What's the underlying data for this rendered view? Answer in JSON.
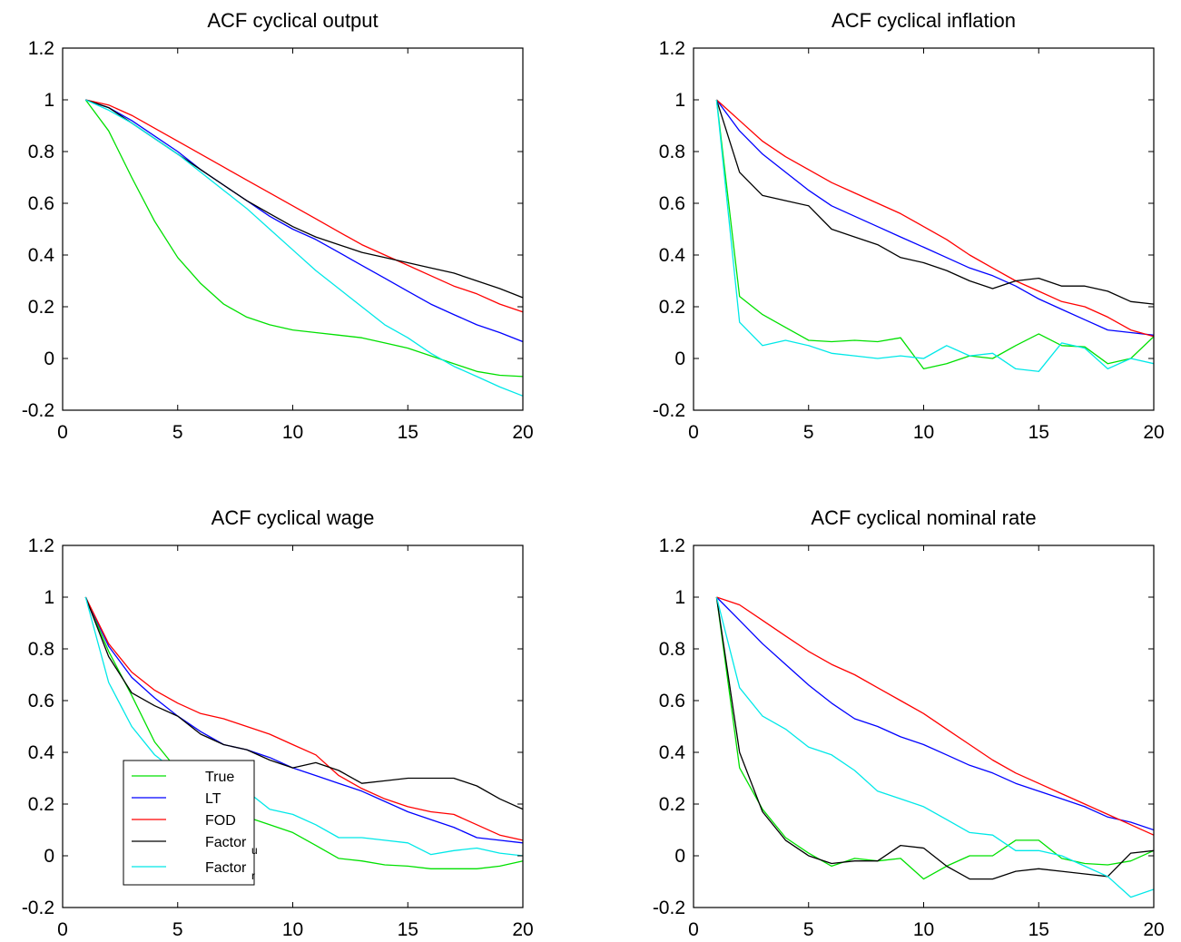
{
  "chart_data": [
    {
      "type": "line",
      "title": "ACF cyclical output",
      "xlim": [
        0,
        20
      ],
      "ylim": [
        -0.2,
        1.2
      ],
      "xticks": [
        "0",
        "5",
        "10",
        "15",
        "20"
      ],
      "yticks": [
        "-0.2",
        "0",
        "0.2",
        "0.4",
        "0.6",
        "0.8",
        "1",
        "1.2"
      ],
      "x": [
        1,
        2,
        3,
        4,
        5,
        6,
        7,
        8,
        9,
        10,
        11,
        12,
        13,
        14,
        15,
        16,
        17,
        18,
        19,
        20
      ],
      "grid": false,
      "series": [
        {
          "key": "True",
          "color": "#00e000",
          "values": [
            1,
            0.88,
            0.7,
            0.53,
            0.39,
            0.29,
            0.21,
            0.16,
            0.13,
            0.11,
            0.1,
            0.09,
            0.08,
            0.06,
            0.04,
            0.01,
            -0.02,
            -0.05,
            -0.065,
            -0.07
          ]
        },
        {
          "key": "LT",
          "color": "#0000ff",
          "values": [
            1,
            0.97,
            0.92,
            0.86,
            0.8,
            0.73,
            0.67,
            0.61,
            0.55,
            0.5,
            0.46,
            0.41,
            0.36,
            0.31,
            0.26,
            0.21,
            0.17,
            0.13,
            0.1,
            0.065
          ]
        },
        {
          "key": "FOD",
          "color": "#ff0000",
          "values": [
            1,
            0.98,
            0.94,
            0.89,
            0.84,
            0.79,
            0.74,
            0.69,
            0.64,
            0.59,
            0.54,
            0.49,
            0.44,
            0.4,
            0.36,
            0.32,
            0.28,
            0.25,
            0.21,
            0.18
          ]
        },
        {
          "key": "Factor_u",
          "color": "#000000",
          "values": [
            1,
            0.97,
            0.91,
            0.85,
            0.79,
            0.73,
            0.67,
            0.61,
            0.56,
            0.51,
            0.47,
            0.44,
            0.41,
            0.39,
            0.37,
            0.35,
            0.33,
            0.3,
            0.27,
            0.235
          ]
        },
        {
          "key": "Factor_r",
          "color": "#00e8e8",
          "values": [
            1,
            0.96,
            0.91,
            0.85,
            0.79,
            0.72,
            0.65,
            0.58,
            0.5,
            0.42,
            0.34,
            0.27,
            0.2,
            0.13,
            0.08,
            0.02,
            -0.03,
            -0.07,
            -0.11,
            -0.145
          ]
        }
      ]
    },
    {
      "type": "line",
      "title": "ACF cyclical inflation",
      "xlim": [
        0,
        20
      ],
      "ylim": [
        -0.2,
        1.2
      ],
      "xticks": [
        "0",
        "5",
        "10",
        "15",
        "20"
      ],
      "yticks": [
        "-0.2",
        "0",
        "0.2",
        "0.4",
        "0.6",
        "0.8",
        "1",
        "1.2"
      ],
      "x": [
        1,
        2,
        3,
        4,
        5,
        6,
        7,
        8,
        9,
        10,
        11,
        12,
        13,
        14,
        15,
        16,
        17,
        18,
        19,
        20
      ],
      "grid": false,
      "series": [
        {
          "key": "True",
          "color": "#00e000",
          "values": [
            1,
            0.24,
            0.17,
            0.12,
            0.07,
            0.065,
            0.07,
            0.065,
            0.08,
            -0.04,
            -0.02,
            0.01,
            0.0,
            0.05,
            0.095,
            0.05,
            0.045,
            -0.02,
            0.0,
            0.085
          ]
        },
        {
          "key": "LT",
          "color": "#0000ff",
          "values": [
            1,
            0.88,
            0.79,
            0.72,
            0.65,
            0.59,
            0.55,
            0.51,
            0.47,
            0.43,
            0.39,
            0.35,
            0.32,
            0.28,
            0.23,
            0.19,
            0.15,
            0.11,
            0.1,
            0.09
          ]
        },
        {
          "key": "FOD",
          "color": "#ff0000",
          "values": [
            1,
            0.92,
            0.84,
            0.78,
            0.73,
            0.68,
            0.64,
            0.6,
            0.56,
            0.51,
            0.46,
            0.4,
            0.35,
            0.3,
            0.26,
            0.22,
            0.2,
            0.16,
            0.11,
            0.085
          ]
        },
        {
          "key": "Factor_u",
          "color": "#000000",
          "values": [
            1,
            0.72,
            0.63,
            0.61,
            0.59,
            0.5,
            0.47,
            0.44,
            0.39,
            0.37,
            0.34,
            0.3,
            0.27,
            0.3,
            0.31,
            0.28,
            0.28,
            0.26,
            0.22,
            0.21
          ]
        },
        {
          "key": "Factor_r",
          "color": "#00e8e8",
          "values": [
            1,
            0.14,
            0.05,
            0.07,
            0.05,
            0.02,
            0.01,
            0.0,
            0.01,
            0.0,
            0.05,
            0.01,
            0.02,
            -0.04,
            -0.05,
            0.06,
            0.04,
            -0.04,
            0.0,
            -0.02
          ]
        }
      ]
    },
    {
      "type": "line",
      "title": "ACF cyclical wage",
      "xlim": [
        0,
        20
      ],
      "ylim": [
        -0.2,
        1.2
      ],
      "xticks": [
        "0",
        "5",
        "10",
        "15",
        "20"
      ],
      "yticks": [
        "-0.2",
        "0",
        "0.2",
        "0.4",
        "0.6",
        "0.8",
        "1",
        "1.2"
      ],
      "x": [
        1,
        2,
        3,
        4,
        5,
        6,
        7,
        8,
        9,
        10,
        11,
        12,
        13,
        14,
        15,
        16,
        17,
        18,
        19,
        20
      ],
      "grid": false,
      "legend": {
        "location": "lower-left",
        "items": [
          {
            "key": "True",
            "label": "True",
            "sub": ""
          },
          {
            "key": "LT",
            "label": "LT",
            "sub": ""
          },
          {
            "key": "FOD",
            "label": "FOD",
            "sub": ""
          },
          {
            "key": "Factor_u",
            "label": "Factor",
            "sub": "u"
          },
          {
            "key": "Factor_r",
            "label": "Factor",
            "sub": "r"
          }
        ]
      },
      "series": [
        {
          "key": "True",
          "color": "#00e000",
          "values": [
            1,
            0.79,
            0.62,
            0.44,
            0.33,
            0.26,
            0.2,
            0.15,
            0.12,
            0.09,
            0.04,
            -0.01,
            -0.02,
            -0.035,
            -0.04,
            -0.05,
            -0.05,
            -0.05,
            -0.04,
            -0.02
          ]
        },
        {
          "key": "LT",
          "color": "#0000ff",
          "values": [
            1,
            0.81,
            0.69,
            0.61,
            0.54,
            0.48,
            0.43,
            0.41,
            0.38,
            0.34,
            0.31,
            0.28,
            0.25,
            0.21,
            0.17,
            0.14,
            0.11,
            0.07,
            0.06,
            0.05
          ]
        },
        {
          "key": "FOD",
          "color": "#ff0000",
          "values": [
            1,
            0.82,
            0.71,
            0.64,
            0.59,
            0.55,
            0.53,
            0.5,
            0.47,
            0.43,
            0.39,
            0.31,
            0.26,
            0.22,
            0.19,
            0.17,
            0.16,
            0.12,
            0.08,
            0.06
          ]
        },
        {
          "key": "Factor_u",
          "color": "#000000",
          "values": [
            1,
            0.77,
            0.63,
            0.58,
            0.54,
            0.47,
            0.43,
            0.41,
            0.37,
            0.34,
            0.36,
            0.33,
            0.28,
            0.29,
            0.3,
            0.3,
            0.3,
            0.27,
            0.22,
            0.18
          ]
        },
        {
          "key": "Factor_r",
          "color": "#00e8e8",
          "values": [
            1,
            0.67,
            0.5,
            0.39,
            0.32,
            0.28,
            0.25,
            0.25,
            0.18,
            0.16,
            0.12,
            0.07,
            0.07,
            0.06,
            0.05,
            0.005,
            0.02,
            0.03,
            0.01,
            0.0
          ]
        }
      ]
    },
    {
      "type": "line",
      "title": "ACF cyclical nominal rate",
      "xlim": [
        0,
        20
      ],
      "ylim": [
        -0.2,
        1.2
      ],
      "xticks": [
        "0",
        "5",
        "10",
        "15",
        "20"
      ],
      "yticks": [
        "-0.2",
        "0",
        "0.2",
        "0.4",
        "0.6",
        "0.8",
        "1",
        "1.2"
      ],
      "x": [
        1,
        2,
        3,
        4,
        5,
        6,
        7,
        8,
        9,
        10,
        11,
        12,
        13,
        14,
        15,
        16,
        17,
        18,
        19,
        20
      ],
      "grid": false,
      "series": [
        {
          "key": "True",
          "color": "#00e000",
          "values": [
            1,
            0.34,
            0.18,
            0.07,
            0.01,
            -0.04,
            -0.01,
            -0.02,
            -0.01,
            -0.09,
            -0.04,
            0.0,
            0.0,
            0.06,
            0.06,
            -0.01,
            -0.03,
            -0.035,
            -0.02,
            0.02
          ]
        },
        {
          "key": "LT",
          "color": "#0000ff",
          "values": [
            1,
            0.91,
            0.82,
            0.74,
            0.66,
            0.59,
            0.53,
            0.5,
            0.46,
            0.43,
            0.39,
            0.35,
            0.32,
            0.28,
            0.25,
            0.22,
            0.19,
            0.15,
            0.13,
            0.1
          ]
        },
        {
          "key": "FOD",
          "color": "#ff0000",
          "values": [
            1,
            0.97,
            0.91,
            0.85,
            0.79,
            0.74,
            0.7,
            0.65,
            0.6,
            0.55,
            0.49,
            0.43,
            0.37,
            0.32,
            0.28,
            0.24,
            0.2,
            0.16,
            0.12,
            0.08
          ]
        },
        {
          "key": "Factor_u",
          "color": "#000000",
          "values": [
            1,
            0.4,
            0.17,
            0.06,
            0.0,
            -0.03,
            -0.02,
            -0.02,
            0.04,
            0.03,
            -0.04,
            -0.09,
            -0.09,
            -0.06,
            -0.05,
            -0.06,
            -0.07,
            -0.08,
            0.01,
            0.02
          ]
        },
        {
          "key": "Factor_r",
          "color": "#00e8e8",
          "values": [
            1,
            0.65,
            0.54,
            0.49,
            0.42,
            0.39,
            0.33,
            0.25,
            0.22,
            0.19,
            0.14,
            0.09,
            0.08,
            0.02,
            0.02,
            0.0,
            -0.04,
            -0.08,
            -0.16,
            -0.13
          ]
        }
      ]
    }
  ]
}
